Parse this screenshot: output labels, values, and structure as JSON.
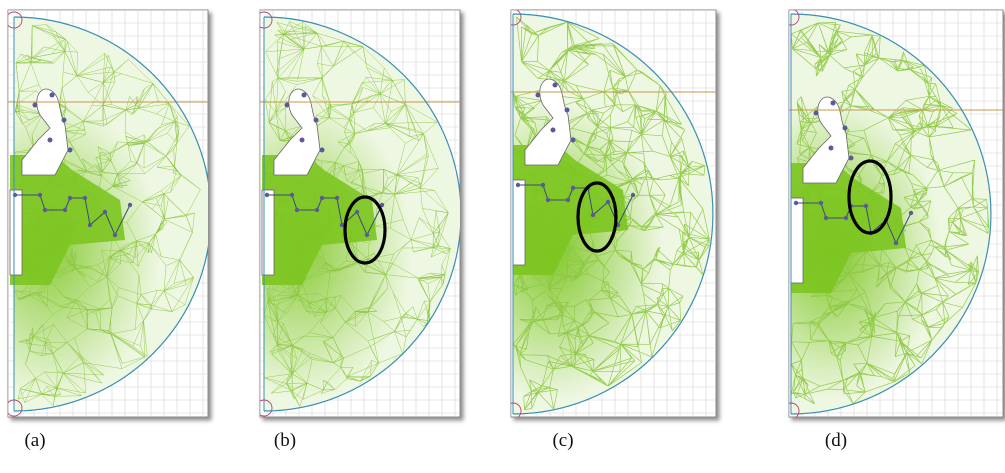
{
  "figure": {
    "panels": [
      {
        "id": "a",
        "caption": "(a)",
        "highlight": false
      },
      {
        "id": "b",
        "caption": "(b)",
        "highlight": true
      },
      {
        "id": "c",
        "caption": "(c)",
        "highlight": true
      },
      {
        "id": "d",
        "caption": "(d)",
        "highlight": true
      }
    ],
    "colors": {
      "mesh": "#8cc63f",
      "dense_fill": "#7cc520",
      "grid": "#d4d4d4",
      "boundary_arc": "#3a8fb5",
      "axis_line": "#c8964e",
      "nodes": "#5a5a9a",
      "highlight_ellipse": "#000000",
      "marker_circle": "#b0407a"
    }
  }
}
